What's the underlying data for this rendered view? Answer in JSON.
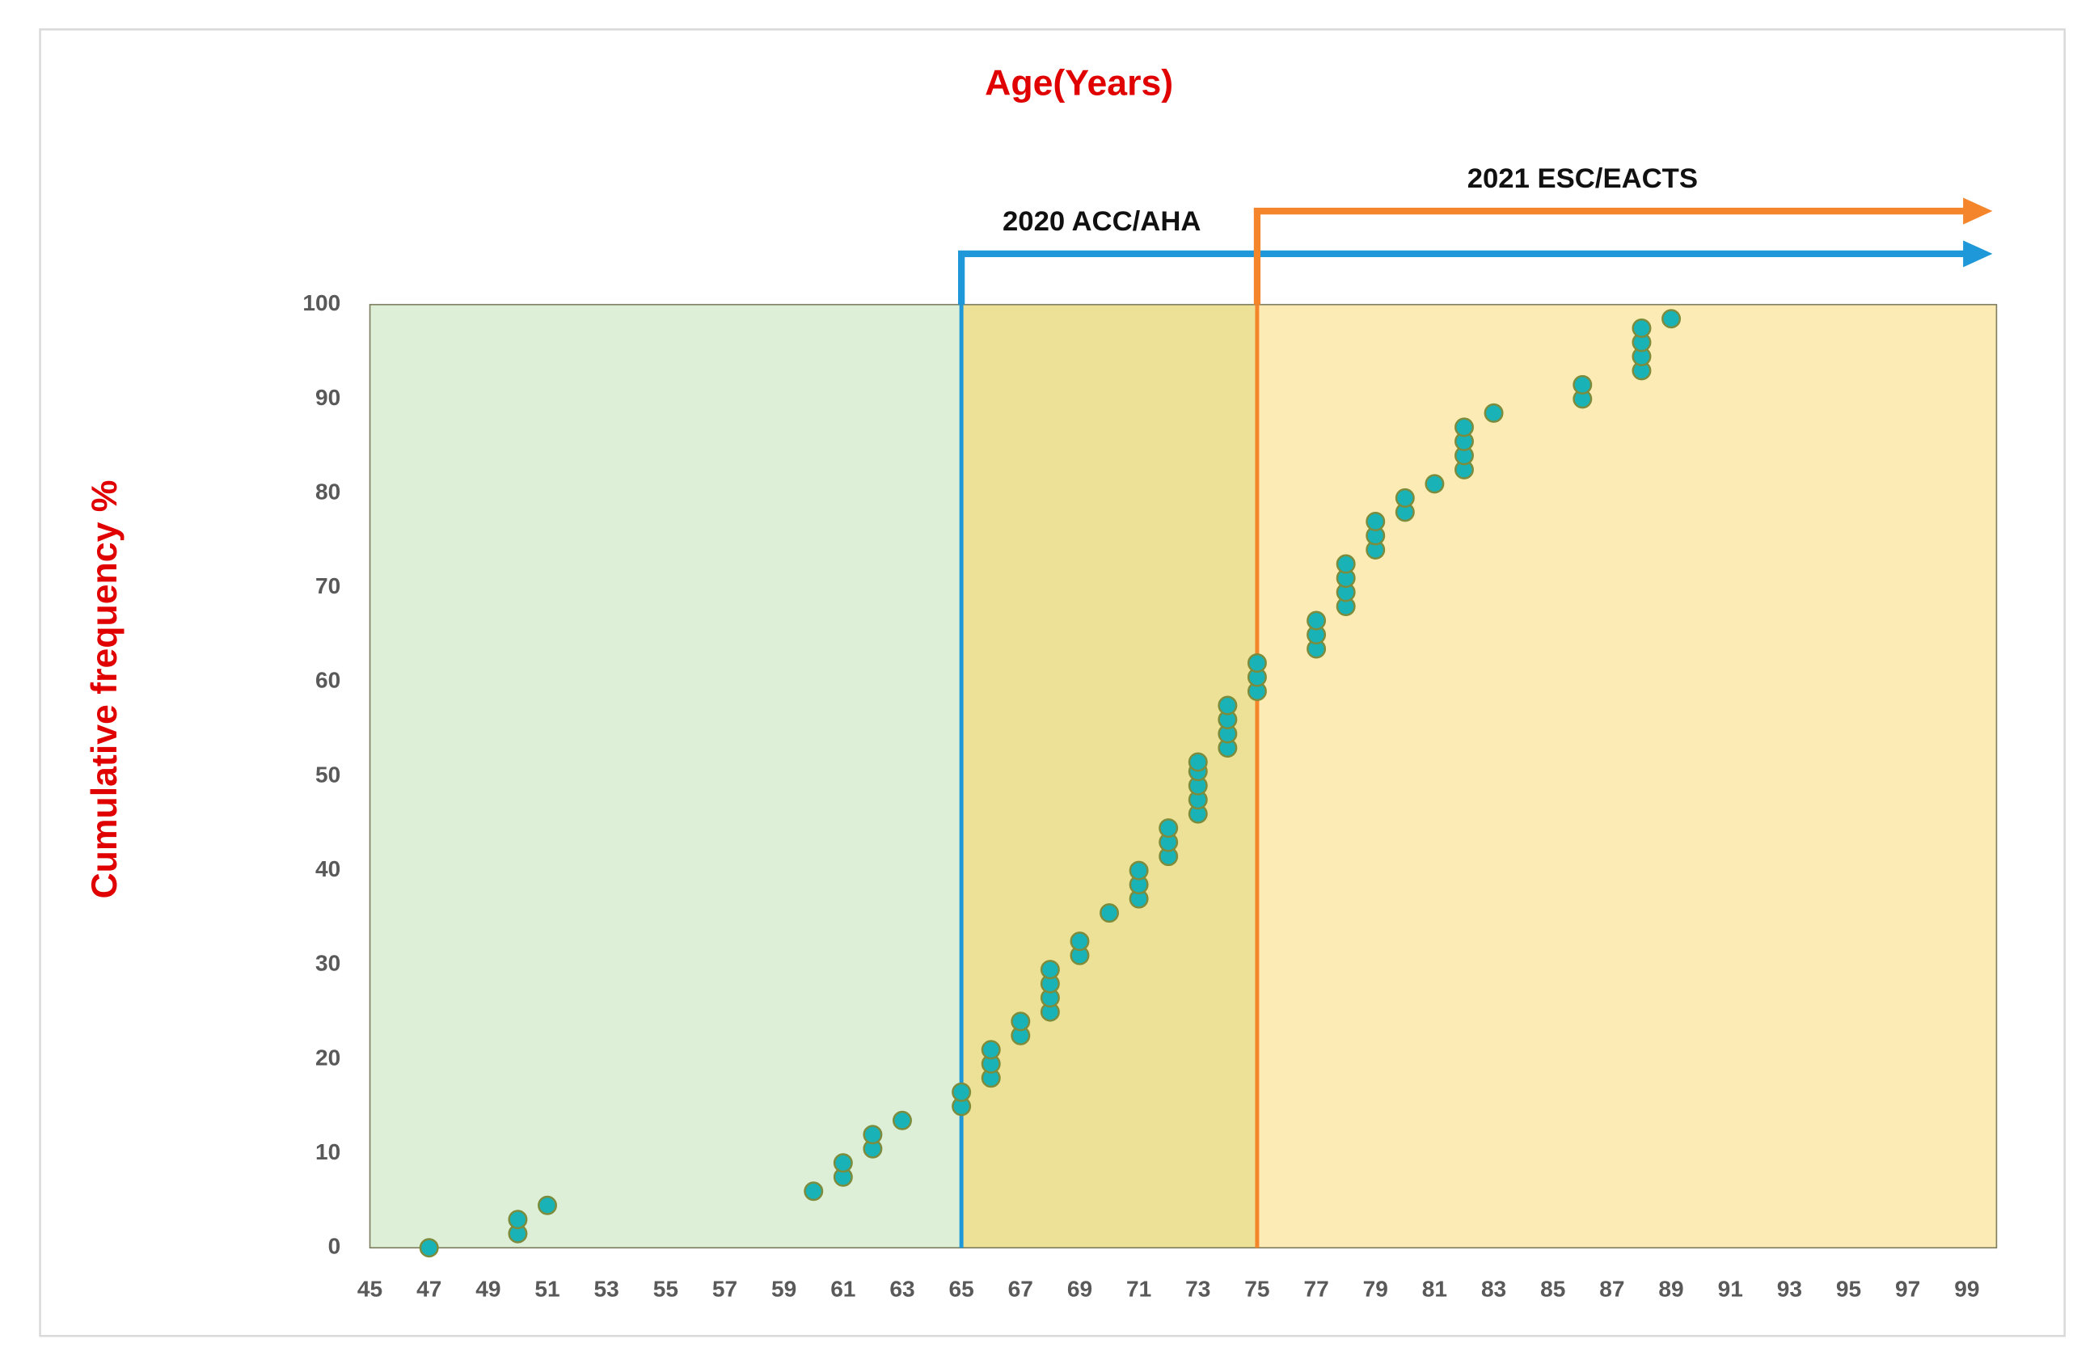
{
  "chart_data": {
    "type": "scatter",
    "title": "Age(Years)",
    "y_label": "Cumulative frequency %",
    "x": [
      47,
      50,
      50,
      51,
      60,
      61,
      61,
      62,
      62,
      63,
      65,
      65,
      66,
      66,
      66,
      67,
      67,
      68,
      68,
      68,
      68,
      69,
      69,
      70,
      71,
      71,
      71,
      72,
      72,
      72,
      73,
      73,
      73,
      73,
      73,
      74,
      74,
      74,
      74,
      75,
      75,
      75,
      77,
      77,
      77,
      78,
      78,
      78,
      78,
      79,
      79,
      79,
      80,
      80,
      81,
      82,
      82,
      82,
      82,
      83,
      86,
      86,
      88,
      88,
      88,
      88,
      89
    ],
    "values": [
      0,
      1.5,
      3,
      4.5,
      6,
      7.5,
      9,
      10.5,
      12,
      13.5,
      15,
      16.5,
      18,
      19.5,
      21,
      22.5,
      24,
      25,
      26.5,
      28,
      29.5,
      31,
      32.5,
      35.5,
      37,
      38.5,
      40,
      41.5,
      43,
      44.5,
      46,
      47.5,
      49,
      50.5,
      51.5,
      53,
      54.5,
      56,
      57.5,
      59,
      60.5,
      62,
      63.5,
      65,
      66.5,
      68,
      69.5,
      71,
      72.5,
      74,
      75.5,
      77,
      78,
      79.5,
      81,
      82.5,
      84,
      85.5,
      87,
      88.5,
      90,
      91.5,
      93,
      94.5,
      96,
      97.5,
      98.5
    ],
    "color": "#19b2b6",
    "edge_color": "#7c8c3c",
    "xlim": [
      45,
      100
    ],
    "xticks": [
      45,
      47,
      49,
      51,
      53,
      55,
      57,
      59,
      61,
      63,
      65,
      67,
      69,
      71,
      73,
      75,
      77,
      79,
      81,
      83,
      85,
      87,
      89,
      91,
      93,
      95,
      97,
      99
    ],
    "ylim": [
      0,
      100
    ],
    "yticks": [
      0,
      10,
      20,
      30,
      40,
      50,
      60,
      70,
      80,
      90,
      100
    ],
    "region_colors": [
      "#deefd8",
      "#ece196",
      "#fdebb5"
    ],
    "guidelines": [
      {
        "x": 65,
        "label": "2020 ACC/AHA",
        "color": "#1e98d8"
      },
      {
        "x": 75,
        "label": "2021 ESC/EACTS",
        "color": "#f5852a"
      }
    ]
  }
}
